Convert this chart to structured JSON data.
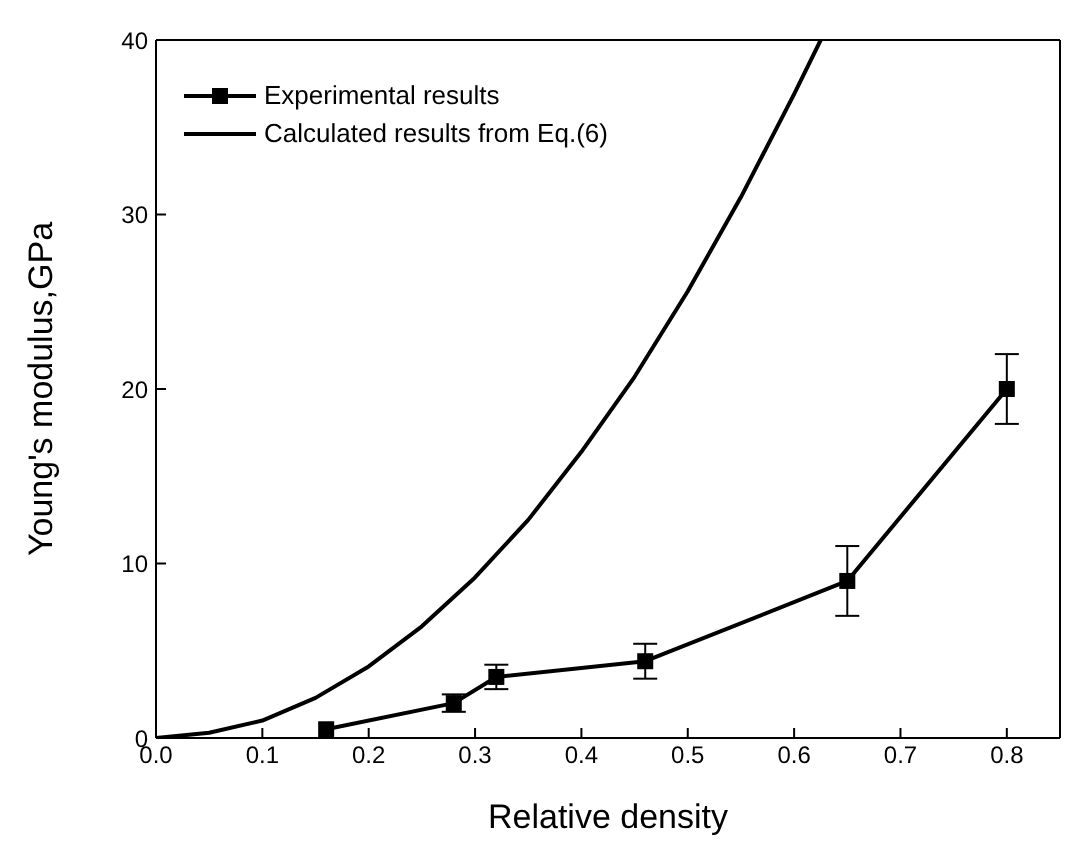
{
  "chart_data": {
    "type": "line",
    "xlabel": "Relative density",
    "ylabel": "Young's modulus,GPa",
    "xlim": [
      0,
      0.85
    ],
    "xticks": [
      {
        "value": 0,
        "label": "0.0"
      },
      {
        "value": 0.1,
        "label": "0.1"
      },
      {
        "value": 0.2,
        "label": "0.2"
      },
      {
        "value": 0.3,
        "label": "0.3"
      },
      {
        "value": 0.4,
        "label": "0.4"
      },
      {
        "value": 0.5,
        "label": "0.5"
      },
      {
        "value": 0.6,
        "label": "0.6"
      },
      {
        "value": 0.7,
        "label": "0.7"
      },
      {
        "value": 0.8,
        "label": "0.8"
      }
    ],
    "ylim": [
      0,
      40
    ],
    "yticks": [
      0,
      10,
      20,
      30,
      40
    ],
    "grid": false,
    "legend": "top left",
    "series": [
      {
        "name": "Experimental results",
        "color": "#000000",
        "marker": "square",
        "x": [
          0.16,
          0.28,
          0.32,
          0.46,
          0.65,
          0.8
        ],
        "values": [
          0.5,
          2.0,
          3.5,
          4.4,
          9.0,
          20.0
        ],
        "errors": [
          null,
          0.5,
          0.7,
          1.0,
          2.0,
          2.0
        ]
      },
      {
        "name": "Calculated results from Eq.(6)",
        "color": "#000000",
        "marker": "none",
        "x": [
          0,
          0.05,
          0.1,
          0.15,
          0.2,
          0.25,
          0.3,
          0.35,
          0.4,
          0.45,
          0.5,
          0.55,
          0.6,
          0.625
        ],
        "values": [
          0,
          0.3,
          1.0,
          2.3,
          4.1,
          6.4,
          9.2,
          12.5,
          16.4,
          20.7,
          25.6,
          31.0,
          36.9,
          40.0
        ]
      }
    ]
  }
}
